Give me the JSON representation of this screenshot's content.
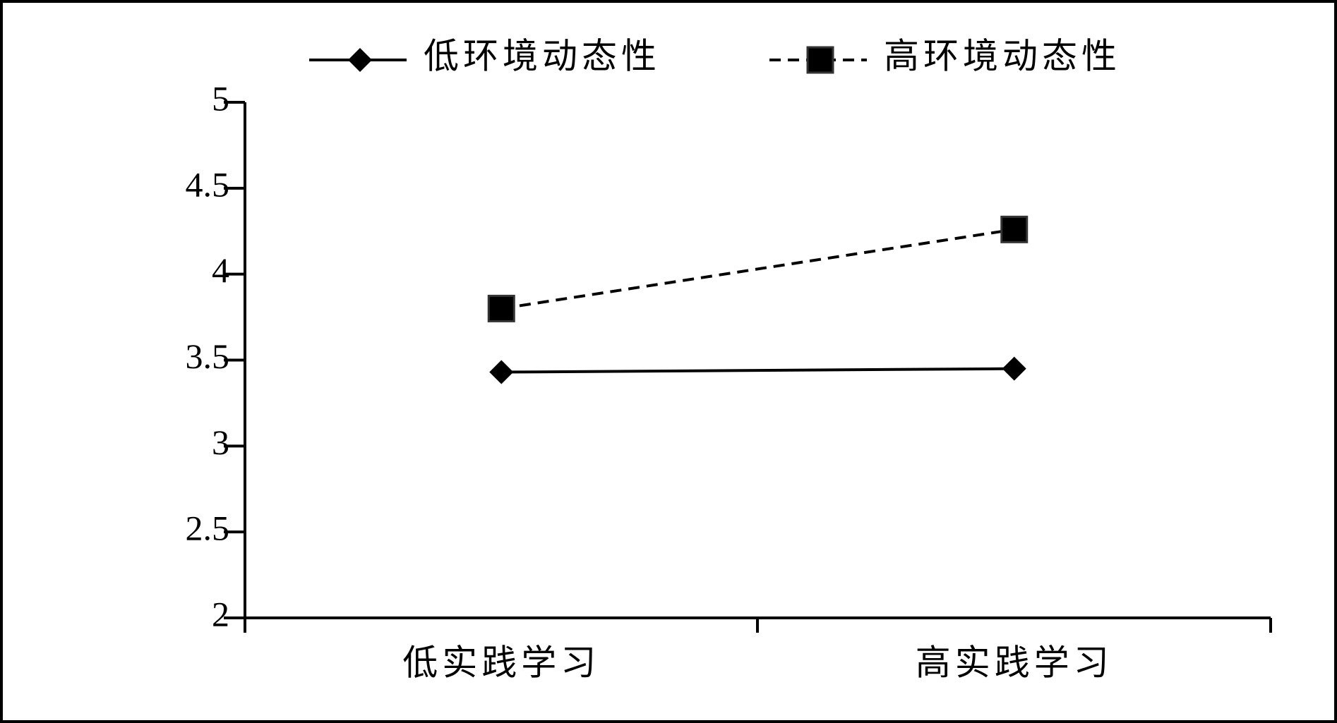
{
  "chart_data": {
    "type": "line",
    "categories": [
      "低实践学习",
      "高实践学习"
    ],
    "series": [
      {
        "name": "低环境动态性",
        "color": "#000000",
        "values": [
          3.43,
          3.45
        ],
        "marker": "diamond",
        "dashed": false
      },
      {
        "name": "高环境动态性",
        "color": "#000000",
        "values": [
          3.8,
          4.26
        ],
        "marker": "square",
        "dashed": true
      }
    ],
    "ylim": [
      2,
      5
    ],
    "yticks": [
      2,
      2.5,
      3,
      3.5,
      4,
      4.5,
      5
    ],
    "grid": false,
    "legend": "top"
  }
}
